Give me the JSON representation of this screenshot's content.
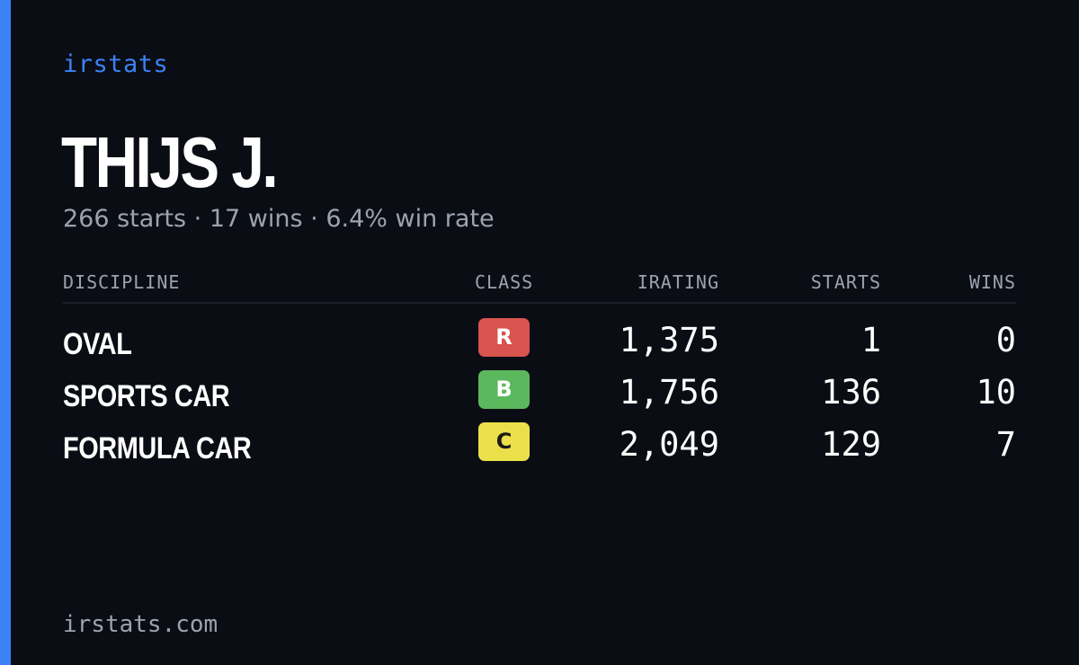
{
  "brand": "irstats",
  "driver": {
    "name": "THIJS J.",
    "starts_text": "266 starts",
    "wins_text": "17 wins",
    "win_rate_text": "6.4% win rate",
    "separator": "·"
  },
  "table": {
    "headers": {
      "discipline": "DISCIPLINE",
      "class": "CLASS",
      "irating": "IRATING",
      "starts": "STARTS",
      "wins": "WINS"
    },
    "rows": [
      {
        "discipline": "OVAL",
        "class": "R",
        "class_color": "#d9534f",
        "class_text_color": "#ffffff",
        "irating": "1,375",
        "starts": "1",
        "wins": "0"
      },
      {
        "discipline": "SPORTS CAR",
        "class": "B",
        "class_color": "#5cb85c",
        "class_text_color": "#ffffff",
        "irating": "1,756",
        "starts": "136",
        "wins": "10"
      },
      {
        "discipline": "FORMULA CAR",
        "class": "C",
        "class_color": "#ebe04a",
        "class_text_color": "#1a1a1a",
        "irating": "2,049",
        "starts": "129",
        "wins": "7"
      }
    ]
  },
  "footer": "irstats.com",
  "colors": {
    "background": "#0a0d14",
    "accent": "#3b82f6",
    "muted": "#9ca3af"
  }
}
